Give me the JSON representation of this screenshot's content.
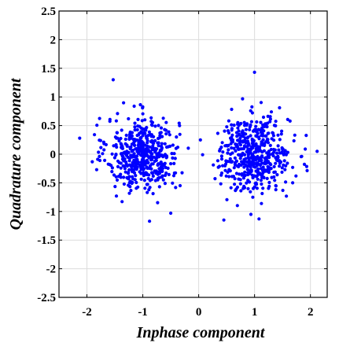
{
  "chart_data": {
    "type": "scatter",
    "title": "",
    "xlabel": "Inphase component",
    "ylabel": "Quadrature component",
    "xlim": [
      -2.5,
      2.3
    ],
    "ylim": [
      -2.5,
      2.5
    ],
    "x_ticks": [
      -2,
      -1,
      0,
      1,
      2
    ],
    "x_tick_labels": [
      "-2",
      "-1",
      "0",
      "1",
      "2"
    ],
    "y_ticks": [
      2.5,
      2,
      1.5,
      1,
      0.5,
      0,
      -0.5,
      -1,
      -1.5,
      -2,
      -2.5
    ],
    "y_tick_labels": [
      "2.5",
      "2",
      "1.5",
      "1",
      "0.5",
      "0",
      "-0.5",
      "-1",
      "-1.5",
      "-2",
      "-2.5"
    ],
    "grid": true,
    "marker_color": "#0000ff",
    "clusters": [
      {
        "center": [
          -1,
          0
        ],
        "spread": 0.32,
        "count": 500
      },
      {
        "center": [
          1,
          0
        ],
        "spread": 0.32,
        "count": 500
      }
    ],
    "notable_points": [
      {
        "x": 1.0,
        "y": 1.43
      },
      {
        "x": -1.53,
        "y": 1.3
      },
      {
        "x": -0.88,
        "y": -1.17
      },
      {
        "x": 0.45,
        "y": -1.15
      },
      {
        "x": 1.08,
        "y": -1.13
      },
      {
        "x": -0.5,
        "y": -1.03
      },
      {
        "x": -2.13,
        "y": 0.28
      },
      {
        "x": 2.12,
        "y": 0.05
      }
    ]
  }
}
